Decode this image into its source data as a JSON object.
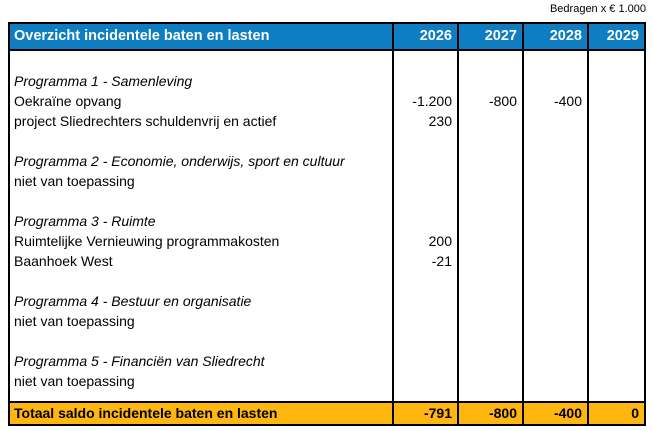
{
  "note": "Bedragen x € 1.000",
  "colors": {
    "header_bg": "#0e7dc2",
    "header_text": "#ffffff",
    "total_bg": "#ffb60f",
    "border": "#000000"
  },
  "table": {
    "title": "Overzicht incidentele baten en lasten",
    "year_columns": [
      "2026",
      "2027",
      "2028",
      "2029"
    ],
    "rows": [
      {
        "label": "",
        "italic": false,
        "values": [
          "",
          "",
          "",
          ""
        ]
      },
      {
        "label": "Programma 1 - Samenleving",
        "italic": true,
        "values": [
          "",
          "",
          "",
          ""
        ]
      },
      {
        "label": "Oekraïne opvang",
        "italic": false,
        "values": [
          "-1.200",
          "-800",
          "-400",
          ""
        ]
      },
      {
        "label": "project Sliedrechters schuldenvrij en actief",
        "italic": false,
        "values": [
          "230",
          "",
          "",
          ""
        ]
      },
      {
        "label": "",
        "italic": false,
        "values": [
          "",
          "",
          "",
          ""
        ]
      },
      {
        "label": "Programma 2 - Economie, onderwijs, sport en cultuur",
        "italic": true,
        "values": [
          "",
          "",
          "",
          ""
        ]
      },
      {
        "label": "niet van toepassing",
        "italic": false,
        "values": [
          "",
          "",
          "",
          ""
        ]
      },
      {
        "label": "",
        "italic": false,
        "values": [
          "",
          "",
          "",
          ""
        ]
      },
      {
        "label": "Programma 3 - Ruimte",
        "italic": true,
        "values": [
          "",
          "",
          "",
          ""
        ]
      },
      {
        "label": "Ruimtelijke Vernieuwing programmakosten",
        "italic": false,
        "values": [
          "200",
          "",
          "",
          ""
        ]
      },
      {
        "label": "Baanhoek West",
        "italic": false,
        "values": [
          "-21",
          "",
          "",
          ""
        ]
      },
      {
        "label": "",
        "italic": false,
        "values": [
          "",
          "",
          "",
          ""
        ]
      },
      {
        "label": "Programma 4 - Bestuur en organisatie",
        "italic": true,
        "values": [
          "",
          "",
          "",
          ""
        ]
      },
      {
        "label": "niet van toepassing",
        "italic": false,
        "values": [
          "",
          "",
          "",
          ""
        ]
      },
      {
        "label": "",
        "italic": false,
        "values": [
          "",
          "",
          "",
          ""
        ]
      },
      {
        "label": "Programma 5 - Financiën van Sliedrecht",
        "italic": true,
        "values": [
          "",
          "",
          "",
          ""
        ]
      },
      {
        "label": "niet van toepassing",
        "italic": false,
        "values": [
          "",
          "",
          "",
          ""
        ]
      },
      {
        "label": "",
        "italic": false,
        "values": [
          "",
          "",
          "",
          ""
        ]
      }
    ],
    "total": {
      "label": "Totaal saldo incidentele baten en lasten",
      "values": [
        "-791",
        "-800",
        "-400",
        "0"
      ]
    }
  }
}
